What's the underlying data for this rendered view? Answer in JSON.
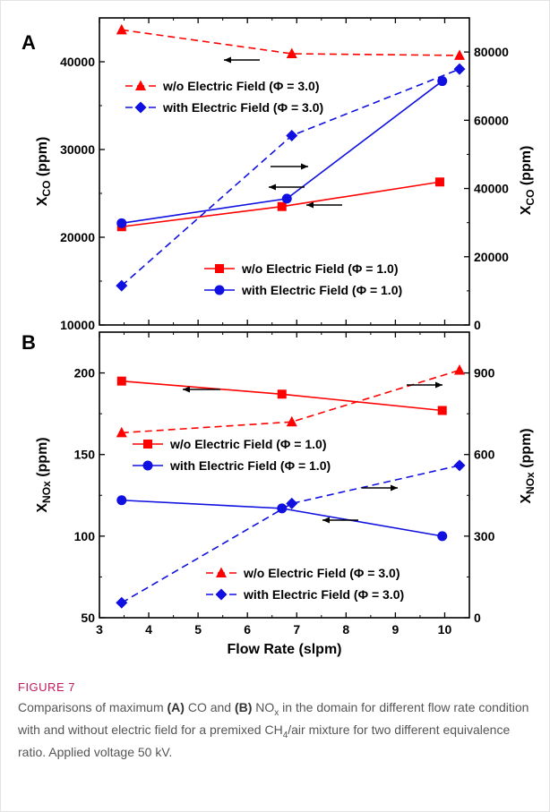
{
  "figure": {
    "label": "FIGURE 7",
    "caption": {
      "t1": "Comparisons of maximum ",
      "a": "(A)",
      "t2": " CO and ",
      "b": "(B)",
      "t3": " NO",
      "t3sub": "x",
      "t4": " in the domain for different flow rate condition with and without electric field for a premixed CH",
      "t4sub": "4",
      "t5": "/air mixture for two different equivalence ratio. Applied voltage 50 kV."
    }
  },
  "colors": {
    "red": "#ff0000",
    "blue": "#1010e0",
    "axis": "#000000"
  },
  "chart_data": [
    {
      "panel": "A",
      "type": "line",
      "xlim": [
        3,
        10.5
      ],
      "ylim": [
        10000,
        45000
      ],
      "y2lim": [
        0,
        90000
      ],
      "xticks": [
        3,
        4,
        5,
        6,
        7,
        8,
        9,
        10
      ],
      "yticks": [
        10000,
        20000,
        30000,
        40000
      ],
      "y2ticks": [
        0,
        20000,
        40000,
        60000,
        80000
      ],
      "ylabel_main": "X",
      "ylabel_sub": "CO",
      "ylabel_tail": " (ppm)",
      "y2label_main": "X",
      "y2label_sub": "CO",
      "y2label_tail": " (ppm)",
      "series": [
        {
          "name": "w/o Electric Field (Φ = 1.0)",
          "axis": "left",
          "color": "#ff0000",
          "marker": "square",
          "dash": false,
          "x": [
            3.45,
            6.7,
            9.9
          ],
          "y": [
            21200,
            23500,
            26300
          ]
        },
        {
          "name": "with Electric Field (Φ = 1.0)",
          "axis": "left",
          "color": "#1010e0",
          "marker": "circle",
          "dash": false,
          "x": [
            3.45,
            6.8,
            9.95
          ],
          "y": [
            21600,
            24400,
            37800
          ]
        },
        {
          "name": "w/o Electric Field (Φ = 3.0)",
          "axis": "right",
          "color": "#ff0000",
          "marker": "triangle",
          "dash": true,
          "x": [
            3.45,
            6.9,
            10.3
          ],
          "y": [
            86500,
            79500,
            79000
          ]
        },
        {
          "name": "with Electric Field (Φ = 3.0)",
          "axis": "right",
          "color": "#1010e0",
          "marker": "diamond",
          "dash": true,
          "x": [
            3.45,
            6.9,
            10.3
          ],
          "y": [
            11500,
            55500,
            75000
          ]
        }
      ],
      "legend_top": [
        2,
        3
      ],
      "legend_bottom": [
        0,
        1
      ]
    },
    {
      "panel": "B",
      "type": "line",
      "xlim": [
        3,
        10.5
      ],
      "ylim": [
        50,
        225
      ],
      "y2lim": [
        0,
        1050
      ],
      "xticks": [
        3,
        4,
        5,
        6,
        7,
        8,
        9,
        10
      ],
      "yticks": [
        50,
        100,
        150,
        200
      ],
      "y2ticks": [
        0,
        300,
        600,
        900
      ],
      "xlabel": "Flow Rate (slpm)",
      "ylabel_main": "X",
      "ylabel_sub": "NOx",
      "ylabel_tail": " (ppm)",
      "y2label_main": "X",
      "y2label_sub": "NOx",
      "y2label_tail": " (ppm)",
      "series": [
        {
          "name": "w/o Electric Field (Φ = 1.0)",
          "axis": "left",
          "color": "#ff0000",
          "marker": "square",
          "dash": false,
          "x": [
            3.45,
            6.7,
            9.95
          ],
          "y": [
            195,
            187,
            177
          ]
        },
        {
          "name": "with Electric Field (Φ = 1.0)",
          "axis": "left",
          "color": "#1010e0",
          "marker": "circle",
          "dash": false,
          "x": [
            3.45,
            6.7,
            9.95
          ],
          "y": [
            122,
            117,
            100
          ]
        },
        {
          "name": "w/o Electric Field (Φ = 3.0)",
          "axis": "right",
          "color": "#ff0000",
          "marker": "triangle",
          "dash": true,
          "x": [
            3.45,
            6.9,
            10.3
          ],
          "y": [
            680,
            720,
            910
          ]
        },
        {
          "name": "with Electric Field (Φ = 3.0)",
          "axis": "right",
          "color": "#1010e0",
          "marker": "diamond",
          "dash": true,
          "x": [
            3.45,
            6.9,
            10.3
          ],
          "y": [
            55,
            420,
            560
          ]
        }
      ],
      "legend_top": [
        0,
        1
      ],
      "legend_bottom": [
        2,
        3
      ]
    }
  ]
}
